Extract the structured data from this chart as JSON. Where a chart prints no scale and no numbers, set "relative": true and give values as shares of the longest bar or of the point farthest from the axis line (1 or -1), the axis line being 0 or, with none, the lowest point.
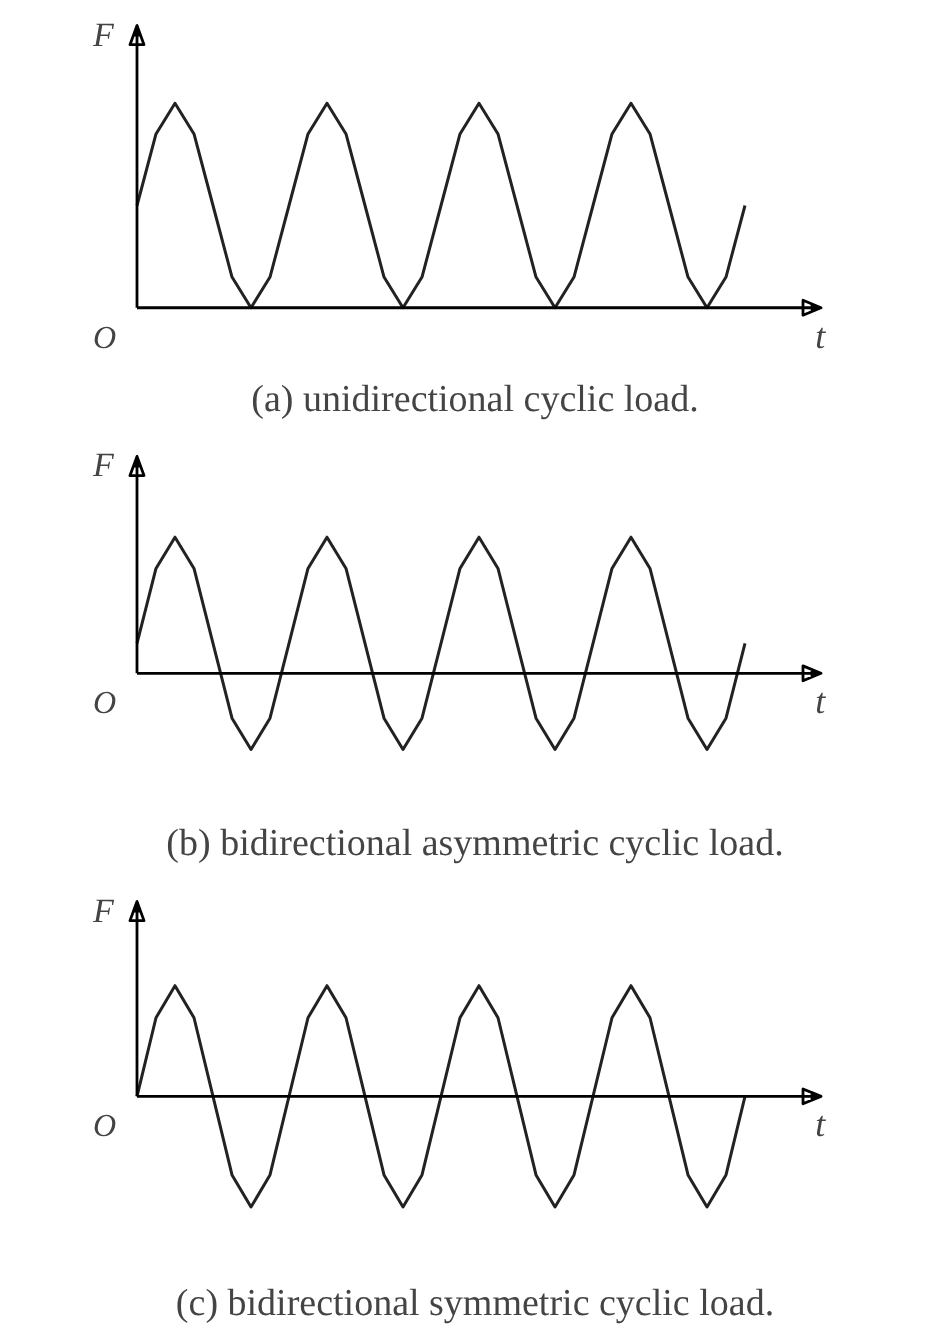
{
  "chart_data": [
    {
      "type": "line",
      "relative": true,
      "title": "(a) unidirectional cyclic load.",
      "xlabel": "t",
      "ylabel": "F",
      "annotations": [
        "O"
      ],
      "categories": [
        null,
        null,
        null,
        null,
        null,
        null,
        null,
        null,
        null,
        null,
        null,
        null,
        null,
        null,
        null,
        null,
        null,
        null,
        null,
        null,
        null,
        null,
        null,
        null,
        null,
        null,
        null,
        null,
        null,
        null,
        null,
        null,
        null
      ],
      "series": [
        {
          "color": "#222222",
          "values": [
            0.5,
            0.85,
            1,
            0.85,
            0.5,
            0.15,
            0,
            0.15,
            0.5,
            0.85,
            1,
            0.85,
            0.5,
            0.15,
            0,
            0.15,
            0.5,
            0.85,
            1,
            0.85,
            0.5,
            0.15,
            0,
            0.15,
            0.5,
            0.85,
            1,
            0.85,
            0.5,
            0.15,
            0,
            0.15,
            0.5
          ]
        }
      ]
    },
    {
      "type": "line",
      "relative": true,
      "title": "(b) bidirectional asymmetric cyclic load.",
      "xlabel": "t",
      "ylabel": "F",
      "annotations": [
        "O"
      ],
      "categories": [
        null,
        null,
        null,
        null,
        null,
        null,
        null,
        null,
        null,
        null,
        null,
        null,
        null,
        null,
        null,
        null,
        null,
        null,
        null,
        null,
        null,
        null,
        null,
        null,
        null,
        null,
        null,
        null,
        null,
        null,
        null,
        null,
        null
      ],
      "series": [
        {
          "color": "#222222",
          "values": [
            0.22,
            0.77,
            1,
            0.77,
            0.22,
            -0.33,
            -0.56,
            -0.33,
            0.22,
            0.77,
            1,
            0.77,
            0.22,
            -0.33,
            -0.56,
            -0.33,
            0.22,
            0.77,
            1,
            0.77,
            0.22,
            -0.33,
            -0.56,
            -0.33,
            0.22,
            0.77,
            1,
            0.77,
            0.22,
            -0.33,
            -0.56,
            -0.33,
            0.22
          ]
        }
      ]
    },
    {
      "type": "line",
      "relative": true,
      "title": "(c) bidirectional symmetric cyclic load.",
      "xlabel": "t",
      "ylabel": "F",
      "annotations": [
        "O"
      ],
      "categories": [
        null,
        null,
        null,
        null,
        null,
        null,
        null,
        null,
        null,
        null,
        null,
        null,
        null,
        null,
        null,
        null,
        null,
        null,
        null,
        null,
        null,
        null,
        null,
        null,
        null,
        null,
        null,
        null,
        null,
        null,
        null,
        null,
        null
      ],
      "series": [
        {
          "color": "#222222",
          "values": [
            0,
            0.71,
            1,
            0.71,
            0,
            -0.71,
            -1,
            -0.71,
            0,
            0.71,
            1,
            0.71,
            0,
            -0.71,
            -1,
            -0.71,
            0,
            0.71,
            1,
            0.71,
            0,
            -0.71,
            -1,
            -0.71,
            0,
            0.71,
            1,
            0.71,
            0,
            -0.71,
            -1,
            -0.71,
            0
          ]
        }
      ]
    }
  ]
}
